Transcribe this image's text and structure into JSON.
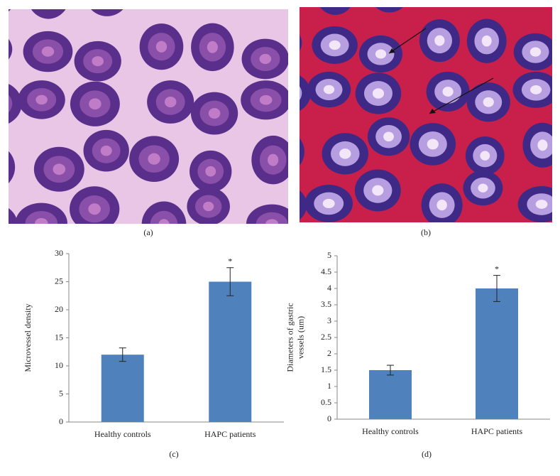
{
  "panels": [
    {
      "label": "(a)"
    },
    {
      "label": "(b)"
    }
  ],
  "chart_data": [
    {
      "type": "bar",
      "panel_label": "(c)",
      "y_label": [
        "Microvessel density"
      ],
      "categories": [
        "Healthy controls",
        "HAPC patients"
      ],
      "values": [
        12,
        25
      ],
      "errors": [
        1.2,
        2.5
      ],
      "significance": [
        null,
        "*"
      ],
      "color": "#4f81bd",
      "ylim": [
        0,
        30
      ],
      "yticks": [
        0,
        5,
        10,
        15,
        20,
        25,
        30
      ]
    },
    {
      "type": "bar",
      "panel_label": "(d)",
      "y_label": [
        "Diameters of gastric",
        "vessels (um)"
      ],
      "categories": [
        "Healthy controls",
        "HAPC patients"
      ],
      "values": [
        1.5,
        4
      ],
      "errors": [
        0.15,
        0.4
      ],
      "significance": [
        null,
        "*"
      ],
      "color": "#4f81bd",
      "ylim": [
        0,
        5
      ],
      "yticks": [
        0,
        0.5,
        1,
        1.5,
        2,
        2.5,
        3,
        3.5,
        4,
        4.5,
        5
      ]
    }
  ]
}
